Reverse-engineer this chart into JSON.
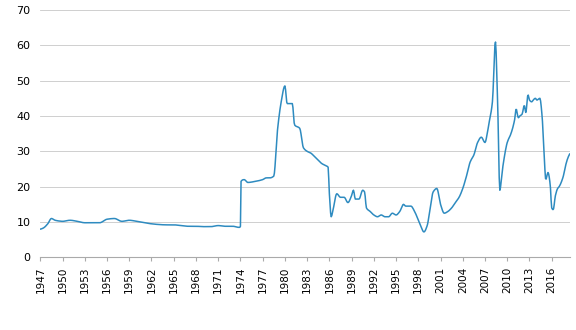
{
  "line_color": "#2E8BC0",
  "background_color": "#ffffff",
  "grid_color": "#c8c8c8",
  "ylim": [
    0,
    70
  ],
  "yticks": [
    0,
    10,
    20,
    30,
    40,
    50,
    60,
    70
  ],
  "xtick_labels": [
    "1947",
    "1950",
    "1953",
    "1956",
    "1959",
    "1962",
    "1965",
    "1968",
    "1971",
    "1974",
    "1977",
    "1980",
    "1983",
    "1986",
    "1989",
    "1992",
    "1995",
    "1998",
    "2001",
    "2004",
    "2007",
    "2010",
    "2013",
    "2016"
  ],
  "xtick_years": [
    1947,
    1950,
    1953,
    1956,
    1959,
    1962,
    1965,
    1968,
    1971,
    1974,
    1977,
    1980,
    1983,
    1986,
    1989,
    1992,
    1995,
    1998,
    2001,
    2004,
    2007,
    2010,
    2013,
    2016
  ],
  "figsize": [
    5.76,
    3.3
  ],
  "dpi": 100,
  "linewidth": 1.1,
  "keypoints": [
    [
      1947.0,
      8.0
    ],
    [
      1947.4,
      8.3
    ],
    [
      1948.0,
      9.5
    ],
    [
      1948.5,
      11.0
    ],
    [
      1949.0,
      10.5
    ],
    [
      1949.5,
      10.3
    ],
    [
      1950.0,
      10.2
    ],
    [
      1951.0,
      10.5
    ],
    [
      1952.0,
      10.2
    ],
    [
      1953.0,
      9.8
    ],
    [
      1954.0,
      9.8
    ],
    [
      1955.0,
      9.8
    ],
    [
      1956.0,
      10.8
    ],
    [
      1957.0,
      11.0
    ],
    [
      1958.0,
      10.2
    ],
    [
      1959.0,
      10.5
    ],
    [
      1960.0,
      10.2
    ],
    [
      1961.0,
      9.8
    ],
    [
      1962.0,
      9.5
    ],
    [
      1963.0,
      9.3
    ],
    [
      1964.0,
      9.2
    ],
    [
      1965.0,
      9.2
    ],
    [
      1966.0,
      9.0
    ],
    [
      1967.0,
      8.8
    ],
    [
      1968.0,
      8.8
    ],
    [
      1969.0,
      8.7
    ],
    [
      1970.0,
      8.7
    ],
    [
      1971.0,
      9.0
    ],
    [
      1972.0,
      8.8
    ],
    [
      1973.0,
      8.8
    ],
    [
      1973.75,
      8.5
    ],
    [
      1973.9,
      8.5
    ],
    [
      1974.0,
      8.8
    ],
    [
      1974.08,
      21.5
    ],
    [
      1974.5,
      22.0
    ],
    [
      1975.0,
      21.2
    ],
    [
      1976.0,
      21.5
    ],
    [
      1977.0,
      22.0
    ],
    [
      1977.5,
      22.5
    ],
    [
      1978.0,
      22.5
    ],
    [
      1978.5,
      23.0
    ],
    [
      1979.0,
      36.0
    ],
    [
      1979.5,
      44.0
    ],
    [
      1980.0,
      48.5
    ],
    [
      1980.3,
      43.5
    ],
    [
      1981.0,
      43.5
    ],
    [
      1981.3,
      37.5
    ],
    [
      1982.0,
      36.5
    ],
    [
      1982.5,
      31.0
    ],
    [
      1983.0,
      30.0
    ],
    [
      1983.5,
      29.5
    ],
    [
      1984.0,
      28.5
    ],
    [
      1984.5,
      27.5
    ],
    [
      1985.0,
      26.5
    ],
    [
      1985.5,
      26.0
    ],
    [
      1985.83,
      25.5
    ],
    [
      1986.0,
      18.0
    ],
    [
      1986.25,
      11.5
    ],
    [
      1986.5,
      13.5
    ],
    [
      1987.0,
      18.0
    ],
    [
      1987.5,
      17.0
    ],
    [
      1988.0,
      17.0
    ],
    [
      1988.5,
      15.5
    ],
    [
      1989.0,
      17.5
    ],
    [
      1989.25,
      19.0
    ],
    [
      1989.5,
      16.5
    ],
    [
      1990.0,
      16.5
    ],
    [
      1990.5,
      19.0
    ],
    [
      1990.75,
      18.5
    ],
    [
      1991.0,
      14.0
    ],
    [
      1991.5,
      13.0
    ],
    [
      1992.0,
      12.0
    ],
    [
      1992.5,
      11.5
    ],
    [
      1993.0,
      12.0
    ],
    [
      1993.5,
      11.5
    ],
    [
      1994.0,
      11.5
    ],
    [
      1994.5,
      12.5
    ],
    [
      1995.0,
      12.0
    ],
    [
      1995.5,
      13.0
    ],
    [
      1996.0,
      15.0
    ],
    [
      1996.3,
      14.5
    ],
    [
      1997.0,
      14.5
    ],
    [
      1997.5,
      13.0
    ],
    [
      1998.0,
      10.5
    ],
    [
      1998.4,
      8.5
    ],
    [
      1998.75,
      7.2
    ],
    [
      1999.2,
      9.0
    ],
    [
      1999.5,
      12.5
    ],
    [
      2000.0,
      18.5
    ],
    [
      2000.5,
      19.5
    ],
    [
      2001.0,
      15.0
    ],
    [
      2001.5,
      12.5
    ],
    [
      2002.0,
      13.0
    ],
    [
      2002.5,
      14.0
    ],
    [
      2003.0,
      15.5
    ],
    [
      2003.5,
      17.0
    ],
    [
      2004.0,
      19.5
    ],
    [
      2004.5,
      23.0
    ],
    [
      2005.0,
      27.0
    ],
    [
      2005.5,
      29.0
    ],
    [
      2006.0,
      32.5
    ],
    [
      2006.5,
      34.0
    ],
    [
      2007.0,
      32.5
    ],
    [
      2007.3,
      35.0
    ],
    [
      2007.5,
      37.5
    ],
    [
      2008.0,
      44.0
    ],
    [
      2008.4,
      61.0
    ],
    [
      2008.7,
      44.0
    ],
    [
      2009.0,
      19.0
    ],
    [
      2009.3,
      24.0
    ],
    [
      2009.5,
      27.0
    ],
    [
      2010.0,
      32.5
    ],
    [
      2010.5,
      35.0
    ],
    [
      2011.0,
      39.0
    ],
    [
      2011.2,
      42.0
    ],
    [
      2011.5,
      39.5
    ],
    [
      2011.7,
      40.0
    ],
    [
      2012.0,
      40.5
    ],
    [
      2012.3,
      43.0
    ],
    [
      2012.5,
      41.0
    ],
    [
      2012.8,
      46.0
    ],
    [
      2013.0,
      44.5
    ],
    [
      2013.3,
      44.0
    ],
    [
      2013.5,
      44.5
    ],
    [
      2013.8,
      45.0
    ],
    [
      2014.0,
      44.5
    ],
    [
      2014.4,
      45.0
    ],
    [
      2014.7,
      40.0
    ],
    [
      2015.0,
      28.0
    ],
    [
      2015.2,
      22.0
    ],
    [
      2015.5,
      24.0
    ],
    [
      2015.8,
      20.5
    ],
    [
      2016.0,
      14.0
    ],
    [
      2016.2,
      13.5
    ],
    [
      2016.5,
      17.5
    ],
    [
      2016.8,
      19.5
    ],
    [
      2017.0,
      20.0
    ],
    [
      2017.5,
      22.5
    ],
    [
      2018.0,
      27.0
    ],
    [
      2018.25,
      28.5
    ]
  ]
}
